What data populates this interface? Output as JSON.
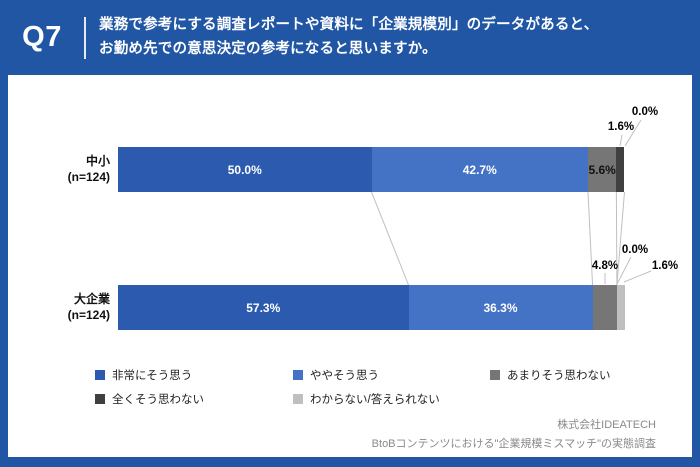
{
  "header": {
    "question_number": "Q7",
    "question_line1": "業務で参考にする調査レポートや資料に「企業規模別」のデータがあると、",
    "question_line2": "お勤め先での意思決定の参考になると思いますか。"
  },
  "chart_data": {
    "type": "bar",
    "orientation": "horizontal",
    "stacked": true,
    "unit": "%",
    "xlim": [
      0,
      100
    ],
    "legend_position": "bottom",
    "value_labels": true,
    "categories": [
      {
        "label": "中小",
        "n": "(n=124)"
      },
      {
        "label": "大企業",
        "n": "(n=124)"
      }
    ],
    "series": [
      {
        "name": "非常にそう思う",
        "color": "#2B5AAE",
        "values": [
          50.0,
          57.3
        ]
      },
      {
        "name": "ややそう思う",
        "color": "#4472C4",
        "values": [
          42.7,
          36.3
        ]
      },
      {
        "name": "あまりそう思わない",
        "color": "#767676",
        "values": [
          5.6,
          4.8
        ]
      },
      {
        "name": "全くそう思わない",
        "color": "#404040",
        "values": [
          1.6,
          0.0
        ]
      },
      {
        "name": "わからない/答えられない",
        "color": "#BFBFBF",
        "values": [
          0.0,
          1.6
        ]
      }
    ]
  },
  "footer": {
    "company": "株式会社IDEATECH",
    "survey_title": "BtoBコンテンツにおける\"企業規模ミスマッチ\"の実態調査"
  },
  "colors": {
    "frame_blue": "#2156A5",
    "connector_line": "#C0C0C0",
    "footer_text": "#8A8A8A"
  }
}
